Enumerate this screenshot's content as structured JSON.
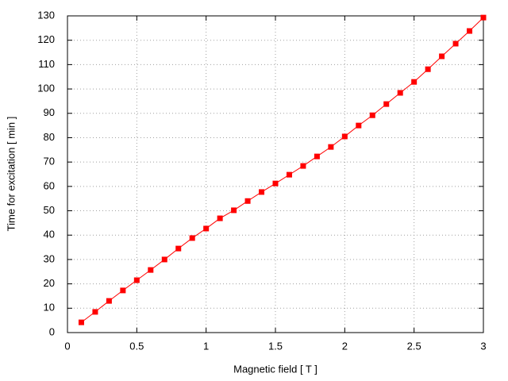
{
  "chart_data": {
    "type": "line",
    "x_label": "Magnetic field [ T ]",
    "y_label": "Time for excitation [ min ]",
    "x": [
      0.1,
      0.2,
      0.3,
      0.4,
      0.5,
      0.6,
      0.7,
      0.8,
      0.9,
      1.0,
      1.1,
      1.2,
      1.3,
      1.4,
      1.5,
      1.6,
      1.7,
      1.8,
      1.9,
      2.0,
      2.1,
      2.2,
      2.3,
      2.4,
      2.5,
      2.6,
      2.7,
      2.8,
      2.9,
      3.0
    ],
    "values": [
      4.2,
      8.5,
      13,
      17.3,
      21.5,
      25.7,
      30,
      34.5,
      38.8,
      42.7,
      46.9,
      50.2,
      54,
      57.7,
      61.2,
      64.8,
      68.4,
      72.3,
      76.2,
      80.5,
      85,
      89.2,
      93.8,
      98.4,
      102.9,
      108.1,
      113.4,
      118.6,
      123.8,
      129.3
    ],
    "color": "#ff0000",
    "xlim": [
      0,
      3
    ],
    "xticks": [
      0,
      0.5,
      1,
      1.5,
      2,
      2.5,
      3
    ],
    "ylim": [
      0,
      130
    ],
    "yticks": [
      0,
      10,
      20,
      30,
      40,
      50,
      60,
      70,
      80,
      90,
      100,
      110,
      120,
      130
    ],
    "grid": true
  }
}
